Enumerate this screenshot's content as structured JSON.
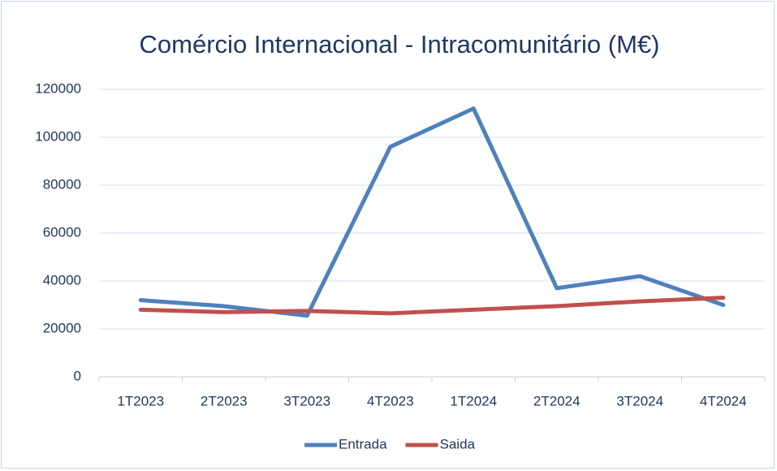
{
  "chart_data": {
    "type": "line",
    "title": "Comércio Internacional - Intracomunitário (M€)",
    "categories": [
      "1T2023",
      "2T2023",
      "3T2023",
      "4T2023",
      "1T2024",
      "2T2024",
      "3T2024",
      "4T2024"
    ],
    "series": [
      {
        "name": "Entrada",
        "color": "#4f81bd",
        "values": [
          32000,
          29500,
          25500,
          96000,
          112000,
          37000,
          42000,
          30000
        ]
      },
      {
        "name": "Saida",
        "color": "#c0504d",
        "values": [
          28000,
          27000,
          27500,
          26500,
          28000,
          29500,
          31500,
          33000
        ]
      }
    ],
    "ylim": [
      0,
      120000
    ],
    "yticks": [
      0,
      20000,
      40000,
      60000,
      80000,
      100000,
      120000
    ],
    "grid": true,
    "legend": "bottom"
  }
}
